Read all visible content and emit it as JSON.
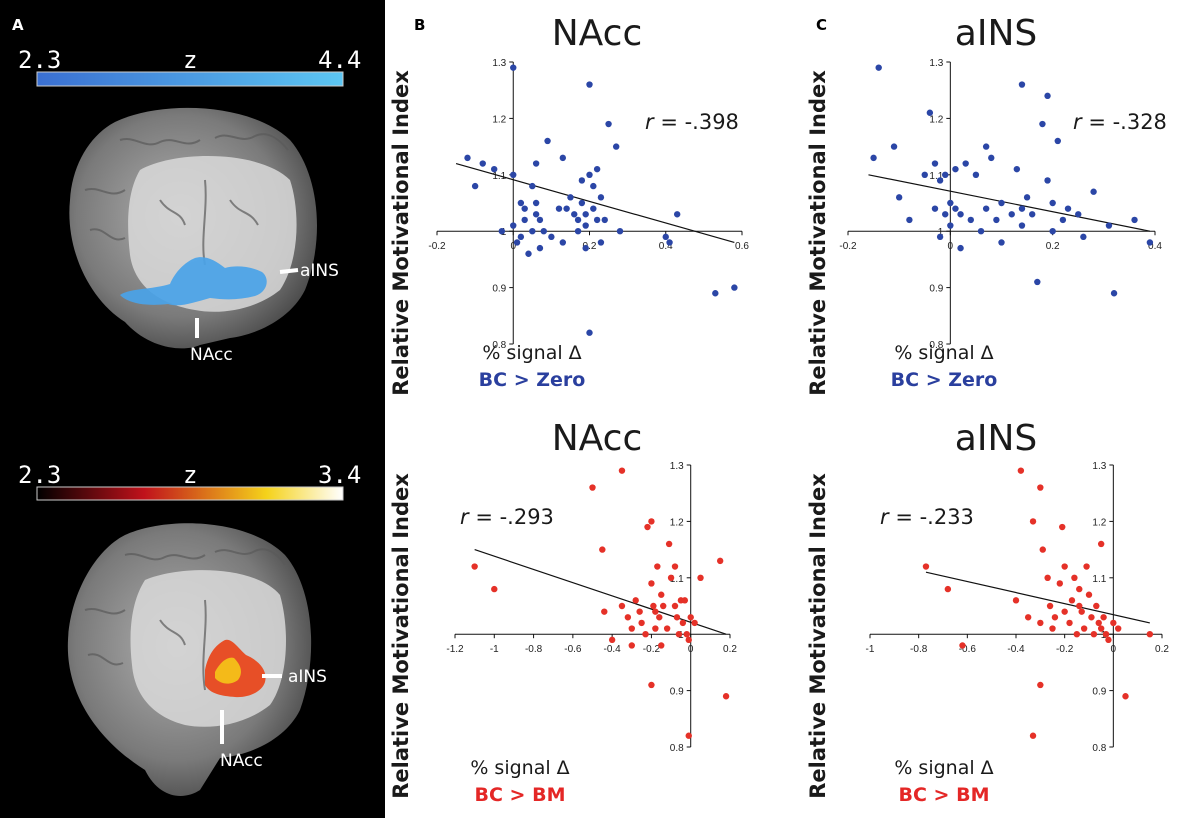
{
  "figure": {
    "panel_labels": [
      "A",
      "B",
      "C"
    ]
  },
  "brain_panels": [
    {
      "colorbar": {
        "min_label": "2.3",
        "max_label": "4.4",
        "z_label": "z",
        "color_start": "#3a6fd1",
        "color_end": "#5cc6f2"
      },
      "region_labels": [
        "aINS",
        "NAcc"
      ],
      "blob_color": "#4aa3e8"
    },
    {
      "colorbar": {
        "min_label": "2.3",
        "max_label": "3.4",
        "z_label": "z",
        "color_start": "#000000",
        "color_mid1": "#c0121b",
        "color_mid2": "#f5d21a",
        "color_end": "#ffffff"
      },
      "region_labels": [
        "aINS",
        "NAcc"
      ],
      "blob_color": "#e8481e"
    }
  ],
  "chart_data": [
    {
      "type": "scatter",
      "title": "NAcc",
      "ylabel": "Relative Motivational Index",
      "xlabel": "% signal Δ",
      "condition": "BC > Zero",
      "condition_color": "#2a3f9e",
      "point_color": "#2b46a6",
      "r_label": "r",
      "r_value": "= -.398",
      "xlim": [
        -0.2,
        0.6
      ],
      "ylim": [
        0.8,
        1.3
      ],
      "xticks": [
        -0.2,
        0,
        0.2,
        0.4,
        0.6
      ],
      "xtick_labels": [
        "-0.2",
        "0",
        "0.2",
        "0.4",
        "0.6"
      ],
      "yticks": [
        0.8,
        0.9,
        1,
        1.1,
        1.2,
        1.3
      ],
      "ytick_labels": [
        "0.8",
        "0.9",
        "1",
        "1.1",
        "1.2",
        "1.3"
      ],
      "fit_line": [
        [
          -0.15,
          1.12
        ],
        [
          0.58,
          0.98
        ]
      ],
      "points": [
        [
          0.0,
          1.29
        ],
        [
          -0.12,
          1.13
        ],
        [
          -0.1,
          1.08
        ],
        [
          -0.08,
          1.12
        ],
        [
          -0.05,
          1.11
        ],
        [
          -0.03,
          1.0
        ],
        [
          0.0,
          1.1
        ],
        [
          0.0,
          1.01
        ],
        [
          0.01,
          0.98
        ],
        [
          0.02,
          1.05
        ],
        [
          0.02,
          0.99
        ],
        [
          0.03,
          1.04
        ],
        [
          0.03,
          1.02
        ],
        [
          0.04,
          0.96
        ],
        [
          0.05,
          1.0
        ],
        [
          0.05,
          1.08
        ],
        [
          0.06,
          1.03
        ],
        [
          0.06,
          1.05
        ],
        [
          0.06,
          1.12
        ],
        [
          0.07,
          1.02
        ],
        [
          0.07,
          0.97
        ],
        [
          0.08,
          1.0
        ],
        [
          0.09,
          1.16
        ],
        [
          0.1,
          0.99
        ],
        [
          0.12,
          1.04
        ],
        [
          0.13,
          1.13
        ],
        [
          0.13,
          0.98
        ],
        [
          0.14,
          1.04
        ],
        [
          0.15,
          1.06
        ],
        [
          0.16,
          1.03
        ],
        [
          0.17,
          1.02
        ],
        [
          0.17,
          1.0
        ],
        [
          0.18,
          1.05
        ],
        [
          0.18,
          1.09
        ],
        [
          0.19,
          1.03
        ],
        [
          0.19,
          1.01
        ],
        [
          0.19,
          0.97
        ],
        [
          0.2,
          1.26
        ],
        [
          0.2,
          1.1
        ],
        [
          0.21,
          1.04
        ],
        [
          0.21,
          1.08
        ],
        [
          0.22,
          1.11
        ],
        [
          0.22,
          1.02
        ],
        [
          0.23,
          1.06
        ],
        [
          0.23,
          0.98
        ],
        [
          0.24,
          1.02
        ],
        [
          0.25,
          1.19
        ],
        [
          0.27,
          1.15
        ],
        [
          0.2,
          0.82
        ],
        [
          0.28,
          1.0
        ],
        [
          0.4,
          0.99
        ],
        [
          0.43,
          1.03
        ],
        [
          0.53,
          0.89
        ],
        [
          0.58,
          0.9
        ],
        [
          0.41,
          0.98
        ]
      ]
    },
    {
      "type": "scatter",
      "title": "aINS",
      "ylabel": "Relative Motivational Index",
      "xlabel": "% signal Δ",
      "condition": "BC > Zero",
      "condition_color": "#2a3f9e",
      "point_color": "#2b46a6",
      "r_label": "r",
      "r_value": "= -.328",
      "xlim": [
        -0.2,
        0.4
      ],
      "ylim": [
        0.8,
        1.3
      ],
      "xticks": [
        -0.2,
        0,
        0.2,
        0.4
      ],
      "xtick_labels": [
        "-0.2",
        "0",
        "0.2",
        "0.4"
      ],
      "yticks": [
        0.8,
        0.9,
        1,
        1.1,
        1.2,
        1.3
      ],
      "ytick_labels": [
        "0.8",
        "0.9",
        "1",
        "1.1",
        "1.2",
        "1.3"
      ],
      "fit_line": [
        [
          -0.16,
          1.1
        ],
        [
          0.39,
          1.0
        ]
      ],
      "points": [
        [
          -0.14,
          1.29
        ],
        [
          -0.15,
          1.13
        ],
        [
          -0.11,
          1.15
        ],
        [
          -0.1,
          1.06
        ],
        [
          -0.08,
          1.02
        ],
        [
          -0.05,
          1.1
        ],
        [
          -0.04,
          1.21
        ],
        [
          -0.03,
          1.12
        ],
        [
          -0.03,
          1.04
        ],
        [
          -0.02,
          1.09
        ],
        [
          -0.02,
          0.99
        ],
        [
          -0.01,
          1.03
        ],
        [
          -0.01,
          1.1
        ],
        [
          0.0,
          1.05
        ],
        [
          0.0,
          1.01
        ],
        [
          0.01,
          1.11
        ],
        [
          0.01,
          1.04
        ],
        [
          0.02,
          1.03
        ],
        [
          0.02,
          0.97
        ],
        [
          0.03,
          1.12
        ],
        [
          0.04,
          1.02
        ],
        [
          0.05,
          1.1
        ],
        [
          0.06,
          1.0
        ],
        [
          0.07,
          1.04
        ],
        [
          0.08,
          1.13
        ],
        [
          0.09,
          1.02
        ],
        [
          0.1,
          1.05
        ],
        [
          0.1,
          0.98
        ],
        [
          0.12,
          1.03
        ],
        [
          0.13,
          1.11
        ],
        [
          0.14,
          1.26
        ],
        [
          0.14,
          1.04
        ],
        [
          0.14,
          1.01
        ],
        [
          0.15,
          1.06
        ],
        [
          0.16,
          1.03
        ],
        [
          0.17,
          0.91
        ],
        [
          0.18,
          1.19
        ],
        [
          0.19,
          1.09
        ],
        [
          0.2,
          1.05
        ],
        [
          0.2,
          1.0
        ],
        [
          0.21,
          1.16
        ],
        [
          0.22,
          1.02
        ],
        [
          0.23,
          1.04
        ],
        [
          0.25,
          1.03
        ],
        [
          0.28,
          1.07
        ],
        [
          0.26,
          0.99
        ],
        [
          0.31,
          1.01
        ],
        [
          0.32,
          0.89
        ],
        [
          0.36,
          1.02
        ],
        [
          0.39,
          0.98
        ],
        [
          0.07,
          1.15
        ],
        [
          0.19,
          1.24
        ]
      ]
    },
    {
      "type": "scatter",
      "title": "NAcc",
      "ylabel": "Relative Motivational Index",
      "xlabel": "% signal Δ",
      "condition": "BC > BM",
      "condition_color": "#e42726",
      "point_color": "#e53128",
      "r_label": "r",
      "r_value": "= -.293",
      "xlim": [
        -1.2,
        0.2
      ],
      "ylim": [
        0.8,
        1.3
      ],
      "xticks": [
        -1.2,
        -1,
        -0.8,
        -0.6,
        -0.4,
        -0.2,
        0,
        0.2
      ],
      "xtick_labels": [
        "-1.2",
        "-1",
        "-0.8",
        "-0.6",
        "-0.4",
        "-0.2",
        "0",
        "0.2"
      ],
      "yticks": [
        0.8,
        0.9,
        1,
        1.1,
        1.2,
        1.3
      ],
      "ytick_labels": [
        "0.8",
        "0.9",
        "1",
        "1.1",
        "1.2",
        "1.3"
      ],
      "fit_line": [
        [
          -1.1,
          1.15
        ],
        [
          0.18,
          1.0
        ]
      ],
      "points": [
        [
          -1.1,
          1.12
        ],
        [
          -1.0,
          1.08
        ],
        [
          -0.5,
          1.26
        ],
        [
          -0.45,
          1.15
        ],
        [
          -0.35,
          1.29
        ],
        [
          -0.44,
          1.04
        ],
        [
          -0.4,
          0.99
        ],
        [
          -0.35,
          1.05
        ],
        [
          -0.32,
          1.03
        ],
        [
          -0.3,
          1.01
        ],
        [
          -0.28,
          1.06
        ],
        [
          -0.26,
          1.04
        ],
        [
          -0.25,
          1.02
        ],
        [
          -0.23,
          1.0
        ],
        [
          -0.22,
          1.19
        ],
        [
          -0.2,
          1.2
        ],
        [
          -0.2,
          1.09
        ],
        [
          -0.19,
          1.05
        ],
        [
          -0.18,
          1.04
        ],
        [
          -0.18,
          1.01
        ],
        [
          -0.17,
          1.12
        ],
        [
          -0.16,
          1.03
        ],
        [
          -0.15,
          1.07
        ],
        [
          -0.15,
          0.98
        ],
        [
          -0.14,
          1.05
        ],
        [
          -0.12,
          1.01
        ],
        [
          -0.11,
          1.16
        ],
        [
          -0.1,
          1.1
        ],
        [
          -0.08,
          1.05
        ],
        [
          -0.07,
          1.03
        ],
        [
          -0.06,
          1.0
        ],
        [
          -0.05,
          1.06
        ],
        [
          -0.04,
          1.02
        ],
        [
          -0.03,
          1.06
        ],
        [
          -0.02,
          1.0
        ],
        [
          -0.01,
          0.99
        ],
        [
          0.0,
          1.03
        ],
        [
          0.02,
          1.02
        ],
        [
          0.05,
          1.1
        ],
        [
          0.15,
          1.13
        ],
        [
          0.18,
          0.89
        ],
        [
          -0.2,
          0.91
        ],
        [
          -0.01,
          0.82
        ],
        [
          -0.3,
          0.98
        ],
        [
          -0.08,
          1.12
        ]
      ]
    },
    {
      "type": "scatter",
      "title": "aINS",
      "ylabel": "Relative Motivational Index",
      "xlabel": "% signal Δ",
      "condition": "BC > BM",
      "condition_color": "#e42726",
      "point_color": "#e53128",
      "r_label": "r",
      "r_value": "= -.233",
      "xlim": [
        -1.0,
        0.2
      ],
      "ylim": [
        0.8,
        1.3
      ],
      "xticks": [
        -1,
        -0.8,
        -0.6,
        -0.4,
        -0.2,
        0,
        0.2
      ],
      "xtick_labels": [
        "-1",
        "-0.8",
        "-0.6",
        "-0.4",
        "-0.2",
        "0",
        "0.2"
      ],
      "yticks": [
        0.8,
        0.9,
        1,
        1.1,
        1.2,
        1.3
      ],
      "ytick_labels": [
        "0.8",
        "0.9",
        "1",
        "1.1",
        "1.2",
        "1.3"
      ],
      "fit_line": [
        [
          -0.77,
          1.11
        ],
        [
          0.15,
          1.02
        ]
      ],
      "points": [
        [
          -0.77,
          1.12
        ],
        [
          -0.68,
          1.08
        ],
        [
          -0.62,
          0.98
        ],
        [
          -0.38,
          1.29
        ],
        [
          -0.4,
          1.06
        ],
        [
          -0.35,
          1.03
        ],
        [
          -0.33,
          1.2
        ],
        [
          -0.3,
          1.26
        ],
        [
          -0.29,
          1.15
        ],
        [
          -0.3,
          0.91
        ],
        [
          -0.27,
          1.1
        ],
        [
          -0.26,
          1.05
        ],
        [
          -0.25,
          1.01
        ],
        [
          -0.24,
          1.03
        ],
        [
          -0.22,
          1.09
        ],
        [
          -0.21,
          1.19
        ],
        [
          -0.2,
          1.04
        ],
        [
          -0.2,
          1.12
        ],
        [
          -0.18,
          1.02
        ],
        [
          -0.17,
          1.06
        ],
        [
          -0.16,
          1.1
        ],
        [
          -0.15,
          1.0
        ],
        [
          -0.14,
          1.05
        ],
        [
          -0.13,
          1.04
        ],
        [
          -0.12,
          1.01
        ],
        [
          -0.11,
          1.12
        ],
        [
          -0.1,
          1.07
        ],
        [
          -0.09,
          1.03
        ],
        [
          -0.08,
          1.0
        ],
        [
          -0.07,
          1.05
        ],
        [
          -0.06,
          1.02
        ],
        [
          -0.05,
          1.01
        ],
        [
          -0.04,
          1.03
        ],
        [
          -0.03,
          1.0
        ],
        [
          -0.02,
          0.99
        ],
        [
          0.0,
          1.02
        ],
        [
          0.02,
          1.01
        ],
        [
          0.05,
          0.89
        ],
        [
          0.15,
          1.0
        ],
        [
          -0.33,
          0.82
        ],
        [
          -0.05,
          1.16
        ],
        [
          -0.14,
          1.08
        ],
        [
          -0.3,
          1.02
        ]
      ]
    }
  ]
}
